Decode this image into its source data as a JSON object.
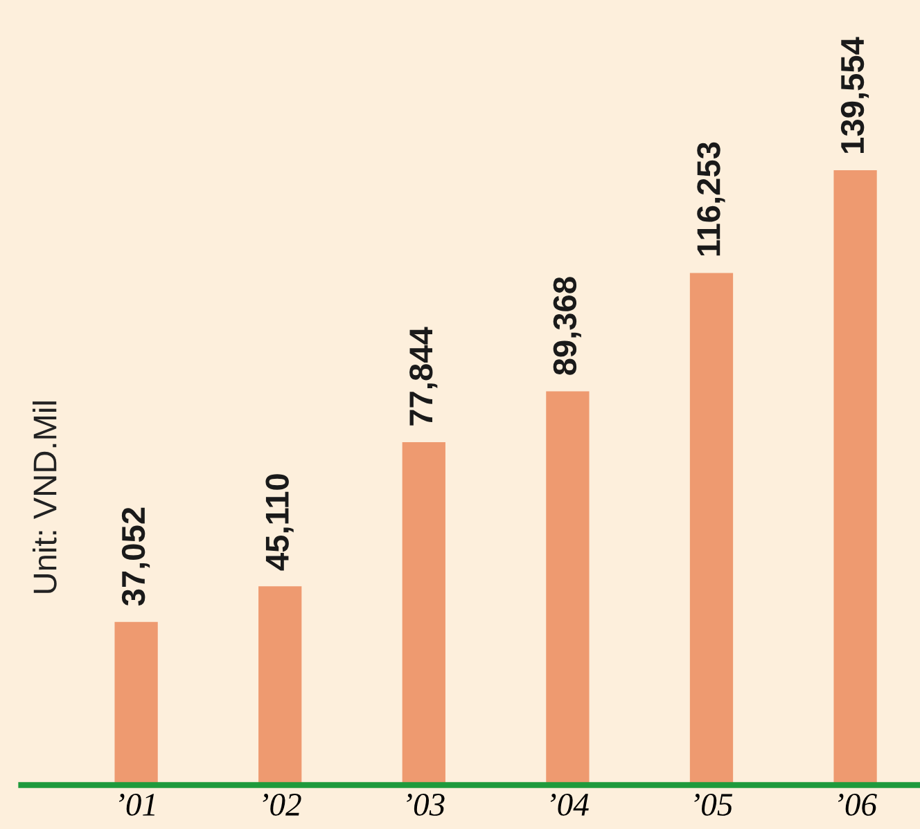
{
  "chart_data": {
    "type": "bar",
    "ylabel": "Unit: VND.Mil",
    "categories": [
      "’01",
      "’02",
      "’03",
      "’04",
      "’05",
      "’06"
    ],
    "values": [
      37052,
      45110,
      77844,
      89368,
      116253,
      139554
    ],
    "value_labels": [
      "37,052",
      "45,110",
      "77,844",
      "89,368",
      "116,253",
      "139,554"
    ],
    "color": "#ee9a70",
    "grid": false,
    "legend": false
  }
}
